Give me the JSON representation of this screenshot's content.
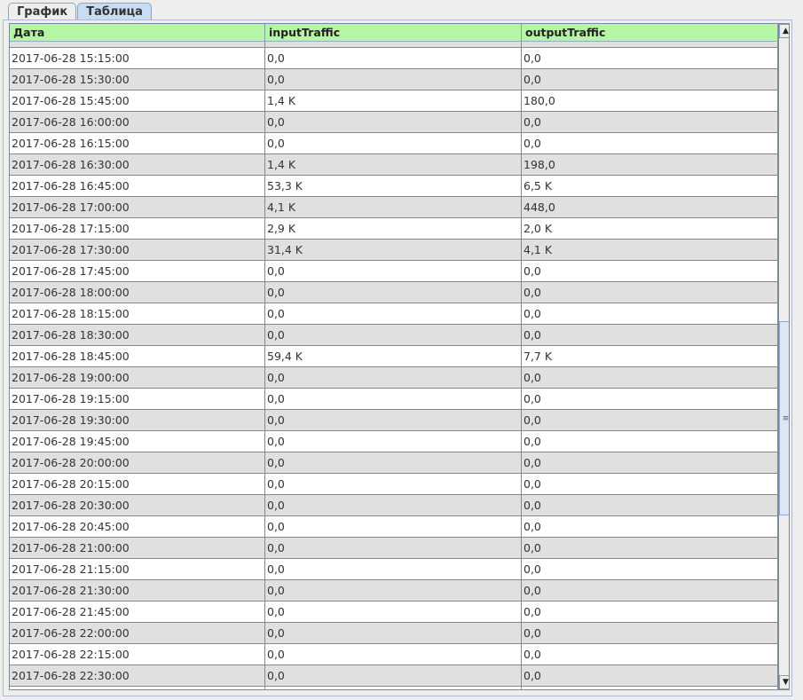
{
  "tabs": [
    {
      "label": "График",
      "selected": false
    },
    {
      "label": "Таблица",
      "selected": true
    }
  ],
  "table": {
    "columns": [
      "Дата",
      "inputTraffic",
      "outputTraffic"
    ],
    "rows": [
      [
        "2017-06-28 15:15:00",
        "0,0",
        "0,0"
      ],
      [
        "2017-06-28 15:30:00",
        "0,0",
        "0,0"
      ],
      [
        "2017-06-28 15:45:00",
        "1,4 K",
        "180,0"
      ],
      [
        "2017-06-28 16:00:00",
        "0,0",
        "0,0"
      ],
      [
        "2017-06-28 16:15:00",
        "0,0",
        "0,0"
      ],
      [
        "2017-06-28 16:30:00",
        "1,4 K",
        "198,0"
      ],
      [
        "2017-06-28 16:45:00",
        "53,3 K",
        "6,5 K"
      ],
      [
        "2017-06-28 17:00:00",
        "4,1 K",
        "448,0"
      ],
      [
        "2017-06-28 17:15:00",
        "2,9 K",
        "2,0 K"
      ],
      [
        "2017-06-28 17:30:00",
        "31,4 K",
        "4,1 K"
      ],
      [
        "2017-06-28 17:45:00",
        "0,0",
        "0,0"
      ],
      [
        "2017-06-28 18:00:00",
        "0,0",
        "0,0"
      ],
      [
        "2017-06-28 18:15:00",
        "0,0",
        "0,0"
      ],
      [
        "2017-06-28 18:30:00",
        "0,0",
        "0,0"
      ],
      [
        "2017-06-28 18:45:00",
        "59,4 K",
        "7,7 K"
      ],
      [
        "2017-06-28 19:00:00",
        "0,0",
        "0,0"
      ],
      [
        "2017-06-28 19:15:00",
        "0,0",
        "0,0"
      ],
      [
        "2017-06-28 19:30:00",
        "0,0",
        "0,0"
      ],
      [
        "2017-06-28 19:45:00",
        "0,0",
        "0,0"
      ],
      [
        "2017-06-28 20:00:00",
        "0,0",
        "0,0"
      ],
      [
        "2017-06-28 20:15:00",
        "0,0",
        "0,0"
      ],
      [
        "2017-06-28 20:30:00",
        "0,0",
        "0,0"
      ],
      [
        "2017-06-28 20:45:00",
        "0,0",
        "0,0"
      ],
      [
        "2017-06-28 21:00:00",
        "0,0",
        "0,0"
      ],
      [
        "2017-06-28 21:15:00",
        "0,0",
        "0,0"
      ],
      [
        "2017-06-28 21:30:00",
        "0,0",
        "0,0"
      ],
      [
        "2017-06-28 21:45:00",
        "0,0",
        "0,0"
      ],
      [
        "2017-06-28 22:00:00",
        "0,0",
        "0,0"
      ],
      [
        "2017-06-28 22:15:00",
        "0,0",
        "0,0"
      ],
      [
        "2017-06-28 22:30:00",
        "0,0",
        "0,0"
      ]
    ]
  },
  "colors": {
    "header_bg": "#b5f5a3",
    "row_alt": "#e0e0e0",
    "tab_selected": "#c8dcf2"
  }
}
